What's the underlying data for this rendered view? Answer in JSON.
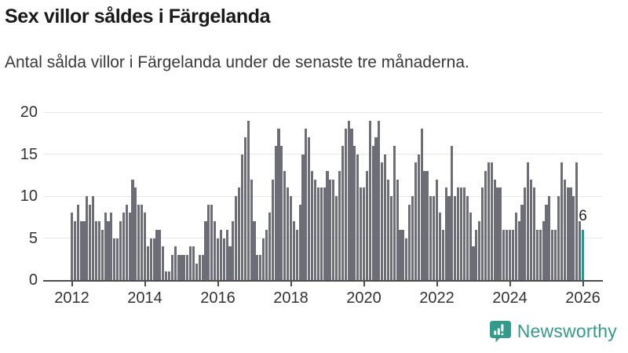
{
  "header": {
    "title": "Sex villor såldes i Färgelanda",
    "subtitle": "Antal sålda villor i Färgelanda under de senaste tre månaderna."
  },
  "chart_data": {
    "type": "bar",
    "title": "Sex villor såldes i Färgelanda",
    "subtitle": "Antal sålda villor i Färgelanda under de senaste tre månaderna.",
    "x_start": "2012-01",
    "x_interval": "month",
    "x_tick_labels": [
      "2012",
      "2014",
      "2016",
      "2018",
      "2020",
      "2022",
      "2024",
      "2026"
    ],
    "y_ticks": [
      0,
      5,
      10,
      15,
      20
    ],
    "ylim": [
      0,
      20
    ],
    "grid": true,
    "legend": "none",
    "values": [
      8,
      7,
      9,
      7,
      7,
      10,
      9,
      10,
      7,
      7,
      6,
      8,
      7,
      8,
      5,
      5,
      7,
      8,
      9,
      8,
      12,
      11,
      9,
      9,
      8,
      4,
      5,
      5,
      6,
      6,
      4,
      1,
      1,
      3,
      4,
      3,
      3,
      3,
      3,
      4,
      4,
      2,
      3,
      3,
      7,
      9,
      9,
      7,
      5,
      6,
      5,
      6,
      4,
      7,
      10,
      11,
      15,
      17,
      19,
      12,
      7,
      3,
      3,
      5,
      6,
      8,
      12,
      16,
      18,
      16,
      13,
      11,
      10,
      7,
      6,
      9,
      15,
      18,
      17,
      13,
      12,
      11,
      11,
      11,
      13,
      12,
      12,
      10,
      13,
      16,
      18,
      19,
      18,
      16,
      15,
      11,
      11,
      13,
      19,
      16,
      17,
      19,
      14,
      15,
      12,
      10,
      16,
      12,
      6,
      6,
      5,
      9,
      10,
      14,
      15,
      18,
      13,
      13,
      10,
      10,
      12,
      8,
      6,
      11,
      10,
      16,
      10,
      11,
      11,
      11,
      10,
      8,
      4,
      6,
      7,
      11,
      13,
      14,
      14,
      12,
      11,
      11,
      6,
      6,
      6,
      6,
      8,
      7,
      9,
      11,
      14,
      12,
      11,
      6,
      6,
      7,
      9,
      10,
      6,
      6,
      10,
      14,
      12,
      11,
      11,
      10,
      14,
      7,
      6
    ],
    "highlight": {
      "index": 168,
      "value": 6,
      "label": "6",
      "color": "#00a4a0"
    },
    "bar_color": "#6d6d77",
    "gridline_color": "#e7e7e7",
    "axis_color": "#4d4d4d",
    "label_color": "#333333"
  },
  "footer": {
    "brand": "Newsworthy"
  }
}
